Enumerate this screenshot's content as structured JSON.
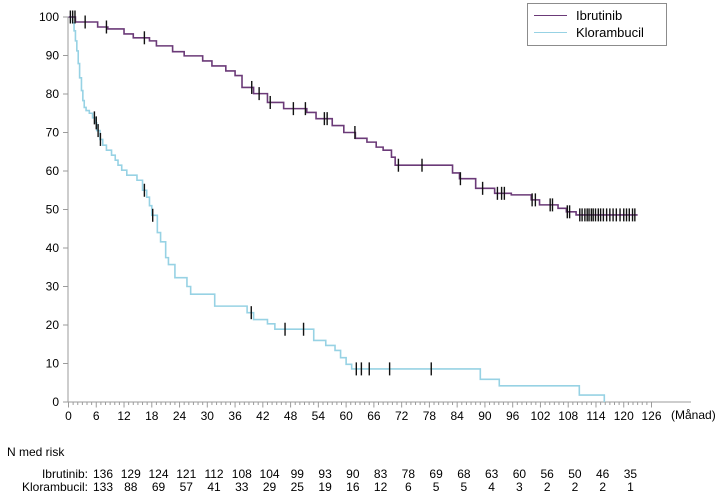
{
  "chart_data": {
    "type": "line",
    "subtype": "kaplan-meier-step-curve",
    "title": "",
    "xlabel": "(Månad)",
    "ylabel": "",
    "xlim": [
      0,
      126
    ],
    "ylim": [
      0,
      100
    ],
    "x_ticks": [
      0,
      6,
      12,
      18,
      24,
      30,
      36,
      42,
      48,
      54,
      60,
      66,
      72,
      78,
      84,
      90,
      96,
      102,
      108,
      114,
      120,
      126
    ],
    "x_minor_tick_interval": 1,
    "y_ticks": [
      0,
      10,
      20,
      30,
      40,
      50,
      60,
      70,
      80,
      90,
      100
    ],
    "grid": false,
    "legend_position": "top-right",
    "series": [
      {
        "name": "Ibrutinib",
        "color": "#6b3a78",
        "steps": [
          [
            0,
            100
          ],
          [
            1.5,
            98.7
          ],
          [
            6.3,
            97.4
          ],
          [
            8.5,
            96.9
          ],
          [
            12,
            95.6
          ],
          [
            14,
            94.6
          ],
          [
            17.5,
            93.8
          ],
          [
            19,
            92.5
          ],
          [
            22.5,
            91
          ],
          [
            25,
            89.9
          ],
          [
            29,
            88.6
          ],
          [
            31,
            87.3
          ],
          [
            34,
            86
          ],
          [
            36,
            84.8
          ],
          [
            37.5,
            81.7
          ],
          [
            40,
            80.1
          ],
          [
            43,
            77.8
          ],
          [
            46.5,
            76.2
          ],
          [
            51.5,
            75.2
          ],
          [
            53.5,
            73.6
          ],
          [
            57,
            71.8
          ],
          [
            59.5,
            70
          ],
          [
            62,
            68.5
          ],
          [
            64.5,
            67.5
          ],
          [
            66.5,
            66.2
          ],
          [
            68,
            65.4
          ],
          [
            69.8,
            63.6
          ],
          [
            70.6,
            61.5
          ],
          [
            83,
            59.5
          ],
          [
            84.5,
            58
          ],
          [
            88,
            55.5
          ],
          [
            92.1,
            54.2
          ],
          [
            95.7,
            53.8
          ],
          [
            100,
            52.5
          ],
          [
            101.8,
            51.2
          ],
          [
            105.8,
            50.3
          ],
          [
            107.6,
            49.4
          ],
          [
            109.7,
            48.6
          ],
          [
            123,
            48.6
          ]
        ],
        "censor_months": [
          0.4,
          0.9,
          1.4,
          3.6,
          8.2,
          16.4,
          39.6,
          41.2,
          43.6,
          48.6,
          51.2,
          55.3,
          55.9,
          61.9,
          71.3,
          76.4,
          84.7,
          89.5,
          92.7,
          93.6,
          94.2,
          100.2,
          100.9,
          104.1,
          104.6,
          107.8,
          108.3,
          110.5,
          111.0,
          111.6,
          112.1,
          112.5,
          113.0,
          113.4,
          113.9,
          114.5,
          115.0,
          115.6,
          116.3,
          117.0,
          117.7,
          118.4,
          119.2,
          120.0,
          120.6,
          121.2,
          121.9,
          122.4
        ]
      },
      {
        "name": "Klorambucil",
        "color": "#97d2e4",
        "steps": [
          [
            0,
            100
          ],
          [
            0.9,
            98.5
          ],
          [
            1.2,
            96.4
          ],
          [
            1.5,
            93.8
          ],
          [
            1.8,
            91.2
          ],
          [
            2.1,
            87.9
          ],
          [
            2.4,
            84.2
          ],
          [
            2.8,
            80.9
          ],
          [
            3.1,
            78.3
          ],
          [
            3.4,
            76.5
          ],
          [
            3.8,
            75.7
          ],
          [
            4.5,
            75
          ],
          [
            5.2,
            73.8
          ],
          [
            5.8,
            72.5
          ],
          [
            6.1,
            70.5
          ],
          [
            6.8,
            68.2
          ],
          [
            7.4,
            66.7
          ],
          [
            8.2,
            65.4
          ],
          [
            9.3,
            64.1
          ],
          [
            10.1,
            62.8
          ],
          [
            10.7,
            61.5
          ],
          [
            11.5,
            60.2
          ],
          [
            12.6,
            58.9
          ],
          [
            14.8,
            57.6
          ],
          [
            16,
            55
          ],
          [
            16.9,
            53.2
          ],
          [
            17.5,
            51
          ],
          [
            18,
            48.5
          ],
          [
            19.2,
            44
          ],
          [
            19.9,
            41.6
          ],
          [
            21,
            37.5
          ],
          [
            21.6,
            35.7
          ],
          [
            23,
            32.3
          ],
          [
            25.6,
            30
          ],
          [
            26.4,
            28
          ],
          [
            31.6,
            24.9
          ],
          [
            38.6,
            23.2
          ],
          [
            40,
            21.4
          ],
          [
            43,
            20.3
          ],
          [
            44.6,
            18.9
          ],
          [
            53,
            16
          ],
          [
            55.6,
            14.7
          ],
          [
            57.6,
            13.4
          ],
          [
            58.8,
            11.5
          ],
          [
            60,
            9.8
          ],
          [
            61.2,
            8.6
          ],
          [
            89,
            5.9
          ],
          [
            93.1,
            4.2
          ],
          [
            110.4,
            1.8
          ],
          [
            115.8,
            0
          ]
        ],
        "censor_months": [
          5.6,
          6.0,
          6.4,
          6.9,
          16.4,
          18.2,
          39.5,
          46.8,
          50.8,
          62.2,
          63.3,
          65.0,
          69.4,
          78.4
        ]
      }
    ]
  },
  "risk_table": {
    "title": "N med risk",
    "rows": [
      {
        "label": "Ibrutinib:",
        "values": [
          "136",
          "129",
          "124",
          "121",
          "112",
          "108",
          "104",
          "99",
          "93",
          "90",
          "83",
          "78",
          "69",
          "68",
          "63",
          "60",
          "56",
          "50",
          "46",
          "35"
        ]
      },
      {
        "label": "Klorambucil:",
        "values": [
          "133",
          "88",
          "69",
          "57",
          "41",
          "33",
          "29",
          "25",
          "19",
          "16",
          "12",
          "6",
          "5",
          "5",
          "4",
          "3",
          "2",
          "2",
          "2",
          "1"
        ]
      }
    ]
  },
  "colors": {
    "axis": "#9b9b9b",
    "censor_mark": "#111111",
    "text": "#000000",
    "legend_border": "#8c8c8c"
  }
}
